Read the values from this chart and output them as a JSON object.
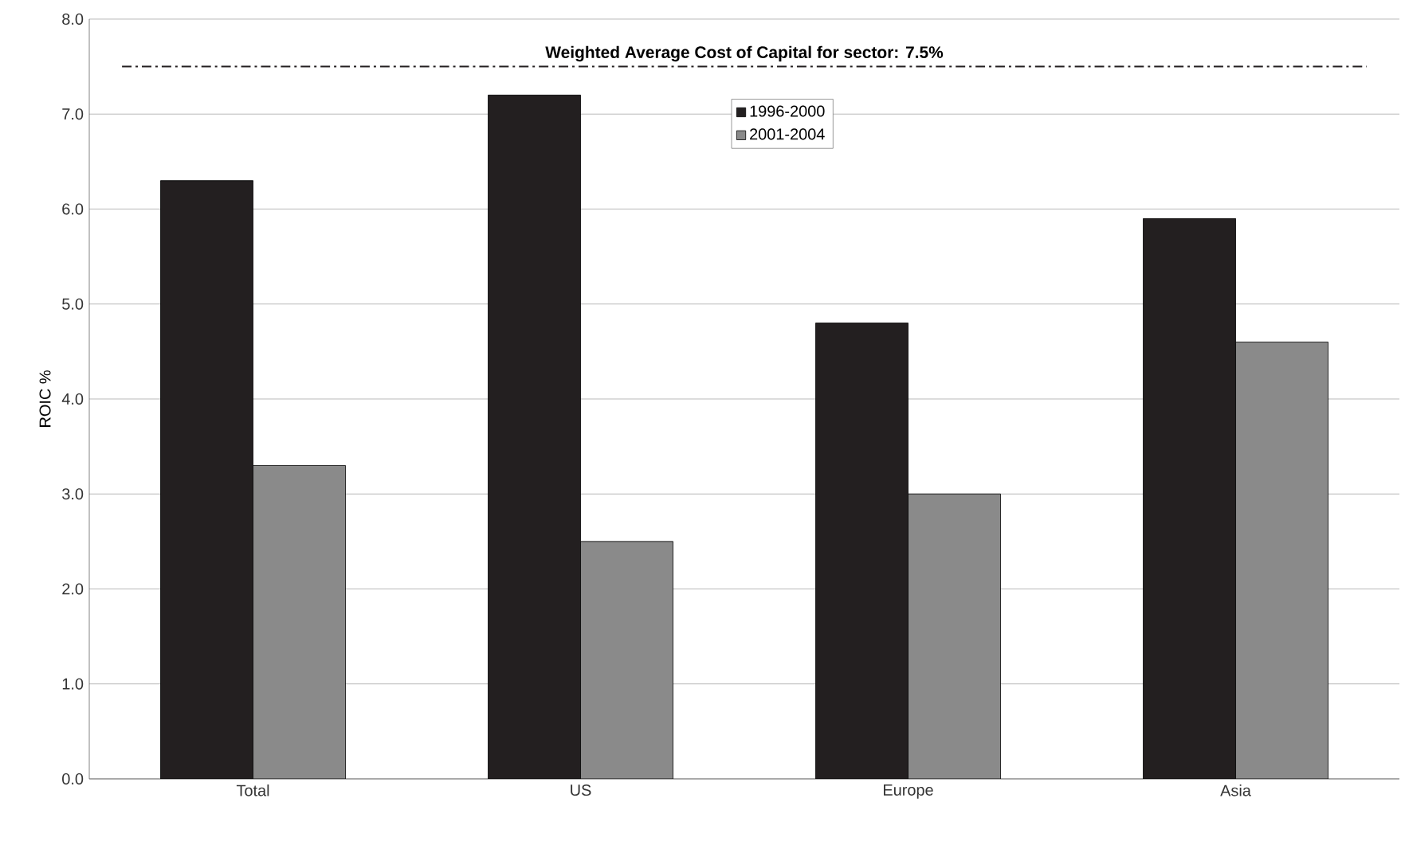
{
  "chart_data": {
    "type": "bar",
    "ylabel": "ROIC %",
    "categories": [
      "Total",
      "US",
      "Europe",
      "Asia"
    ],
    "series": [
      {
        "name": "1996-2000",
        "color": "#231f20",
        "values": [
          6.3,
          7.2,
          4.8,
          5.9
        ]
      },
      {
        "name": "2001-2004",
        "color": "#8a8a8a",
        "values": [
          3.3,
          2.5,
          3.0,
          4.6
        ]
      }
    ],
    "ylim": [
      0,
      8
    ],
    "yticks": [
      {
        "value": 0,
        "label": "0.0"
      },
      {
        "value": 1,
        "label": "1.0"
      },
      {
        "value": 2,
        "label": "2.0"
      },
      {
        "value": 3,
        "label": "3.0"
      },
      {
        "value": 4,
        "label": "4.0"
      },
      {
        "value": 5,
        "label": "5.0"
      },
      {
        "value": 6,
        "label": "6.0"
      },
      {
        "value": 7,
        "label": "7.0"
      },
      {
        "value": 8,
        "label": "8.0"
      }
    ],
    "ref_lines": [
      {
        "axis": "y",
        "value": 7.5,
        "label": "**Weighted Average Cost of Capital for sector: 7.5%**",
        "color": "#231f20",
        "line_style": "dashdot"
      }
    ],
    "grid": "y",
    "legend": "top"
  }
}
